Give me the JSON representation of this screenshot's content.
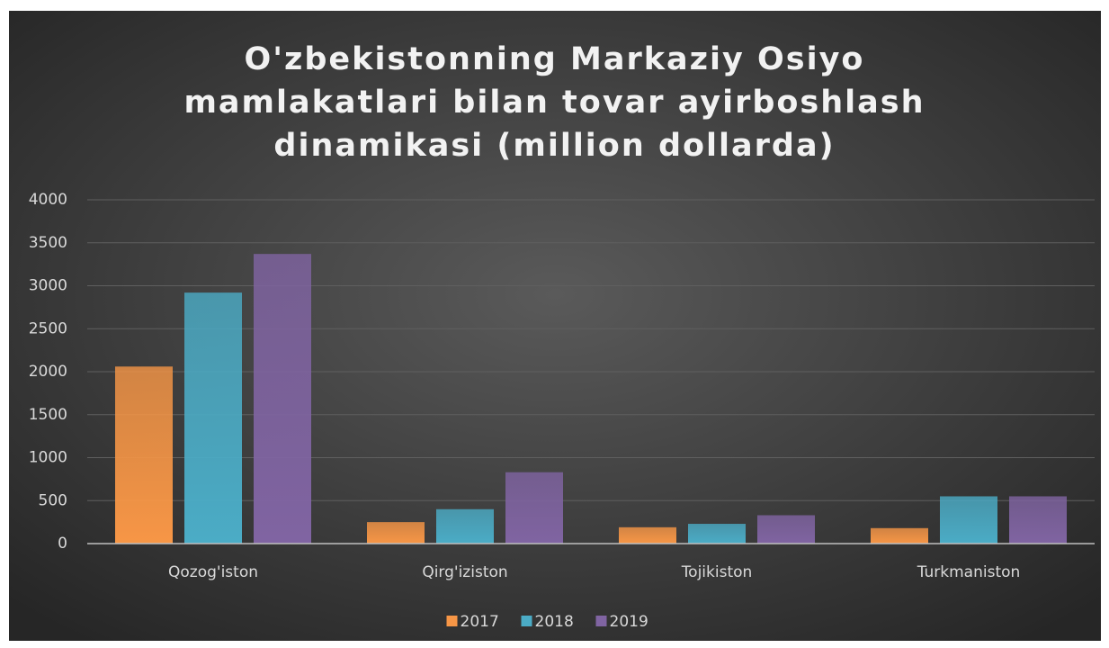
{
  "chart_data": {
    "type": "bar",
    "title": "O'zbekistonning Markaziy Osiyo mamlakatlari bilan tovar ayirboshlash dinamikasi (million dollarda)",
    "categories": [
      "Qozog'iston",
      "Qirg'iziston",
      "Tojikiston",
      "Turkmaniston"
    ],
    "series": [
      {
        "name": "2017",
        "color": "#f79646",
        "values": [
          2060,
          250,
          190,
          180
        ]
      },
      {
        "name": "2018",
        "color": "#4bacc6",
        "values": [
          2920,
          400,
          230,
          550
        ]
      },
      {
        "name": "2019",
        "color": "#8064a2",
        "values": [
          3370,
          830,
          330,
          550
        ]
      }
    ],
    "ylim": [
      0,
      4000
    ],
    "yticks": [
      0,
      500,
      1000,
      1500,
      2000,
      2500,
      3000,
      3500,
      4000
    ],
    "grid": true,
    "legend": "bottom"
  }
}
